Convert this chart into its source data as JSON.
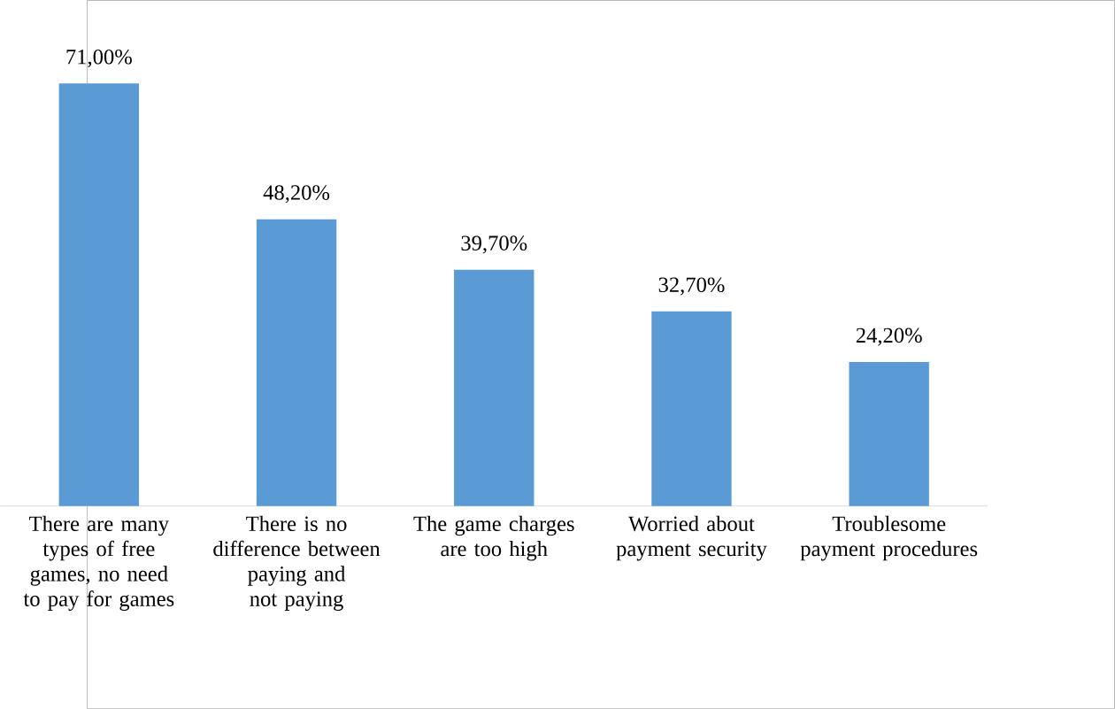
{
  "chart_data": {
    "type": "bar",
    "categories": [
      "There are many types of free games, no need to pay for games",
      "There is no difference between paying and not paying",
      "The game charges are too high",
      "Worried about payment security",
      "Troublesome payment procedures"
    ],
    "values": [
      71.0,
      48.2,
      39.7,
      32.7,
      24.2
    ],
    "value_labels": [
      "71,00%",
      "48,20%",
      "39,70%",
      "32,70%",
      "24,20%"
    ],
    "color": "#5b9bd5"
  }
}
